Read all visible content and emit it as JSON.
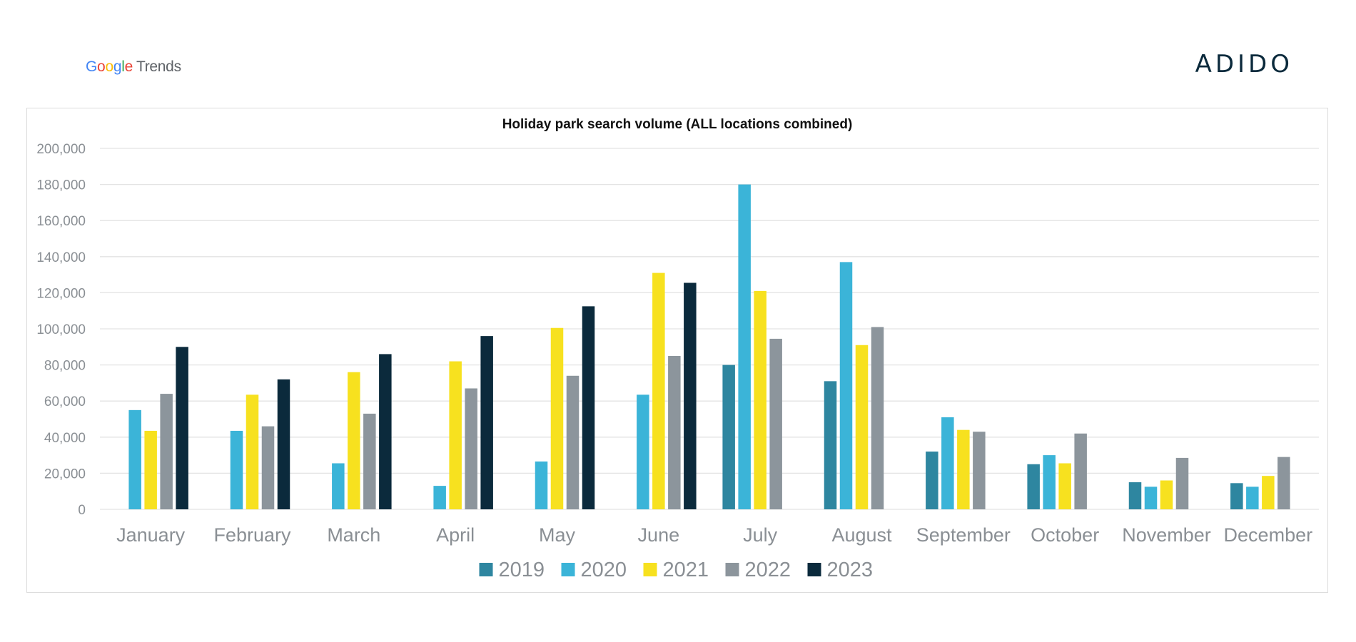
{
  "header": {
    "source_logo": {
      "letters": [
        "G",
        "o",
        "o",
        "g",
        "l",
        "e"
      ],
      "suffix": "Trends"
    },
    "brand_logo": "ADIDO"
  },
  "colors": {
    "2019": "#2e86a0",
    "2020": "#3bb4d8",
    "2021": "#f7e11f",
    "2022": "#8c959c",
    "2023": "#0b2a3c",
    "grid": "#e3e3e3",
    "tick_text": "#8a8f94"
  },
  "chart_data": {
    "type": "bar",
    "title": "Holiday park search volume (ALL locations combined)",
    "xlabel": "",
    "ylabel": "",
    "ylim": [
      0,
      200000
    ],
    "yticks": [
      0,
      20000,
      40000,
      60000,
      80000,
      100000,
      120000,
      140000,
      160000,
      180000,
      200000
    ],
    "ytick_labels": [
      "0",
      "20,000",
      "40,000",
      "60,000",
      "80,000",
      "100,000",
      "120,000",
      "140,000",
      "160,000",
      "180,000",
      "200,000"
    ],
    "grid": true,
    "legend_position": "bottom",
    "categories": [
      "January",
      "February",
      "March",
      "April",
      "May",
      "June",
      "July",
      "August",
      "September",
      "October",
      "November",
      "December"
    ],
    "series": [
      {
        "name": "2019",
        "values": [
          null,
          null,
          null,
          null,
          null,
          null,
          80000,
          71000,
          32000,
          25000,
          15000,
          14500
        ]
      },
      {
        "name": "2020",
        "values": [
          55000,
          43500,
          25500,
          13000,
          26500,
          63500,
          180000,
          137000,
          51000,
          30000,
          12500,
          12500
        ]
      },
      {
        "name": "2021",
        "values": [
          43500,
          63500,
          76000,
          82000,
          100500,
          131000,
          121000,
          91000,
          44000,
          25500,
          16000,
          18500
        ]
      },
      {
        "name": "2022",
        "values": [
          64000,
          46000,
          53000,
          67000,
          74000,
          85000,
          94500,
          101000,
          43000,
          42000,
          28500,
          29000
        ]
      },
      {
        "name": "2023",
        "values": [
          90000,
          72000,
          86000,
          96000,
          112500,
          125500,
          null,
          null,
          null,
          null,
          null,
          null
        ]
      }
    ]
  }
}
